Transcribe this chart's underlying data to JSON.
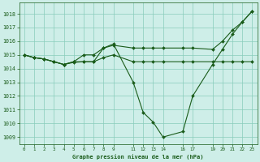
{
  "background_color": "#ceeee8",
  "grid_color": "#88ccbb",
  "line_color": "#1a5c1a",
  "marker_color": "#1a5c1a",
  "xlabel": "Graphe pression niveau de la mer (hPa)",
  "ylim": [
    1008.5,
    1018.8
  ],
  "xlim": [
    -0.5,
    23.5
  ],
  "yticks": [
    1009,
    1010,
    1011,
    1012,
    1013,
    1014,
    1015,
    1016,
    1017,
    1018
  ],
  "xtick_positions": [
    0,
    1,
    2,
    3,
    4,
    5,
    6,
    7,
    8,
    9,
    11,
    12,
    13,
    14,
    16,
    17,
    19,
    20,
    21,
    22,
    23
  ],
  "xtick_labels": [
    "0",
    "1",
    "2",
    "3",
    "4",
    "5",
    "6",
    "7",
    "8",
    "9",
    "11",
    "12",
    "13",
    "14",
    "16",
    "17",
    "19",
    "20",
    "21",
    "22",
    "23"
  ],
  "lines": [
    {
      "x": [
        0,
        1,
        2,
        3,
        4,
        5,
        6,
        7,
        8,
        9,
        11,
        12,
        13,
        14,
        16,
        17,
        19,
        20,
        21,
        22,
        23
      ],
      "y": [
        1015.0,
        1014.8,
        1014.7,
        1014.5,
        1014.3,
        1014.5,
        1014.5,
        1014.5,
        1015.5,
        1015.8,
        1013.0,
        1010.8,
        1010.1,
        1009.0,
        1009.4,
        1012.0,
        1014.3,
        1015.4,
        1016.5,
        1017.4,
        1018.2
      ]
    },
    {
      "x": [
        0,
        1,
        2,
        3,
        4,
        5,
        6,
        7,
        8,
        9,
        11,
        12,
        13,
        14,
        16,
        17,
        19,
        20,
        21,
        22,
        23
      ],
      "y": [
        1015.0,
        1014.8,
        1014.7,
        1014.5,
        1014.3,
        1014.45,
        1014.5,
        1014.5,
        1014.8,
        1015.0,
        1014.5,
        1014.5,
        1014.5,
        1014.5,
        1014.5,
        1014.5,
        1014.5,
        1014.5,
        1014.5,
        1014.5,
        1014.5
      ]
    },
    {
      "x": [
        0,
        1,
        2,
        3,
        4,
        5,
        6,
        7,
        8,
        9,
        11,
        12,
        13,
        14,
        16,
        17,
        19,
        20,
        21,
        22,
        23
      ],
      "y": [
        1015.0,
        1014.8,
        1014.7,
        1014.5,
        1014.3,
        1014.5,
        1015.0,
        1015.0,
        1015.5,
        1015.7,
        1015.5,
        1015.5,
        1015.5,
        1015.5,
        1015.5,
        1015.5,
        1015.4,
        1016.0,
        1016.8,
        1017.4,
        1018.2
      ]
    }
  ]
}
